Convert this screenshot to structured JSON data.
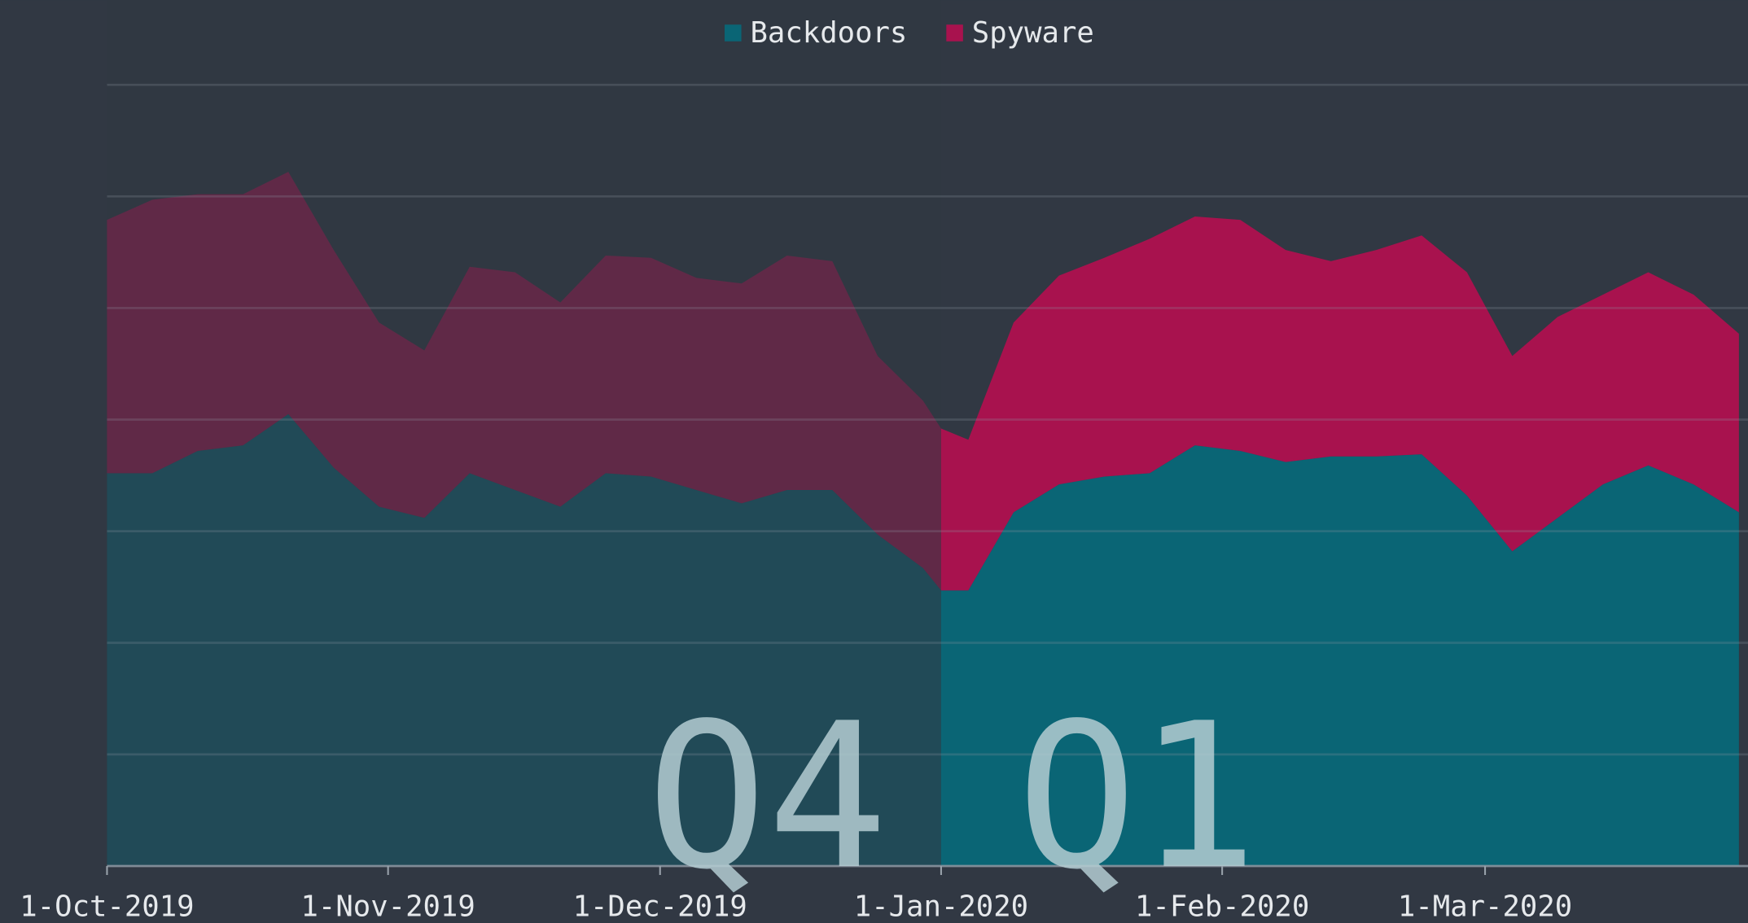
{
  "chart_data": {
    "type": "stacked_area",
    "legend": "top",
    "grid": true,
    "x": [
      "1-Oct-2019",
      "6-Oct-2019",
      "11-Oct-2019",
      "16-Oct-2019",
      "21-Oct-2019",
      "26-Oct-2019",
      "31-Oct-2019",
      "5-Nov-2019",
      "10-Nov-2019",
      "15-Nov-2019",
      "20-Nov-2019",
      "25-Nov-2019",
      "30-Nov-2019",
      "5-Dec-2019",
      "10-Dec-2019",
      "15-Dec-2019",
      "20-Dec-2019",
      "25-Dec-2019",
      "30-Dec-2019",
      "1-Jan-2020",
      "4-Jan-2020",
      "9-Jan-2020",
      "14-Jan-2020",
      "19-Jan-2020",
      "24-Jan-2020",
      "29-Jan-2020",
      "3-Feb-2020",
      "8-Feb-2020",
      "13-Feb-2020",
      "18-Feb-2020",
      "23-Feb-2020",
      "28-Feb-2020",
      "4-Mar-2020",
      "9-Mar-2020",
      "14-Mar-2020",
      "19-Mar-2020",
      "24-Mar-2020",
      "29-Mar-2020"
    ],
    "series": [
      {
        "name": "Backdoors",
        "color": "#0a6575",
        "values": [
          3.52,
          3.52,
          3.72,
          3.77,
          4.05,
          3.57,
          3.22,
          3.12,
          3.52,
          3.37,
          3.22,
          3.52,
          3.49,
          3.37,
          3.25,
          3.37,
          3.37,
          2.97,
          2.67,
          2.47,
          2.47,
          3.17,
          3.42,
          3.49,
          3.52,
          3.77,
          3.72,
          3.62,
          3.67,
          3.67,
          3.69,
          3.32,
          2.82,
          3.12,
          3.42,
          3.59,
          3.42,
          3.17
        ]
      },
      {
        "name": "Spyware",
        "color": "#a8124e",
        "values": [
          2.27,
          2.45,
          2.3,
          2.25,
          2.17,
          1.95,
          1.65,
          1.5,
          1.85,
          1.95,
          1.83,
          1.95,
          1.96,
          1.9,
          1.97,
          2.1,
          2.05,
          1.6,
          1.5,
          1.45,
          1.35,
          1.7,
          1.87,
          1.96,
          2.1,
          2.05,
          2.07,
          1.9,
          1.75,
          1.85,
          1.96,
          2.0,
          1.75,
          1.8,
          1.7,
          1.73,
          1.7,
          1.6
        ]
      }
    ],
    "xlim": [
      "1-Oct-2019",
      "30-Mar-2020"
    ],
    "xticks": [
      "1-Oct-2019",
      "1-Nov-2019",
      "1-Dec-2019",
      "1-Jan-2020",
      "1-Feb-2020",
      "1-Mar-2020"
    ],
    "ylim": [
      0,
      7
    ],
    "yticks": [
      0,
      1,
      2,
      3,
      4,
      5,
      6,
      7
    ],
    "annotations": [
      {
        "text": "Q4",
        "start": "1-Oct-2019",
        "end": "1-Jan-2020"
      },
      {
        "text": "Q1",
        "start": "1-Jan-2020",
        "end": "30-Mar-2020"
      }
    ]
  }
}
